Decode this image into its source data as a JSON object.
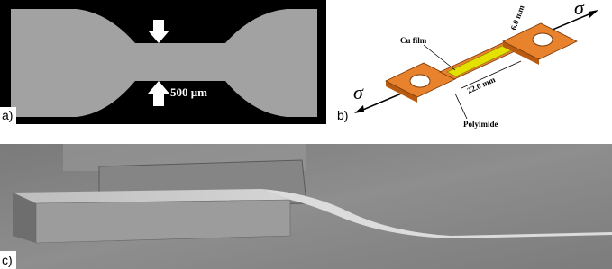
{
  "panel_a": {
    "label": "a)",
    "scale_bar": "500 μm"
  },
  "panel_b": {
    "label": "b)",
    "stress_left": "σ",
    "stress_right": "σ",
    "film_label": "Cu film",
    "width_label": "6.0 mm",
    "length_label": "22.0 mm",
    "substrate_label": "Polyimide"
  },
  "panel_c": {
    "label": "c)"
  }
}
